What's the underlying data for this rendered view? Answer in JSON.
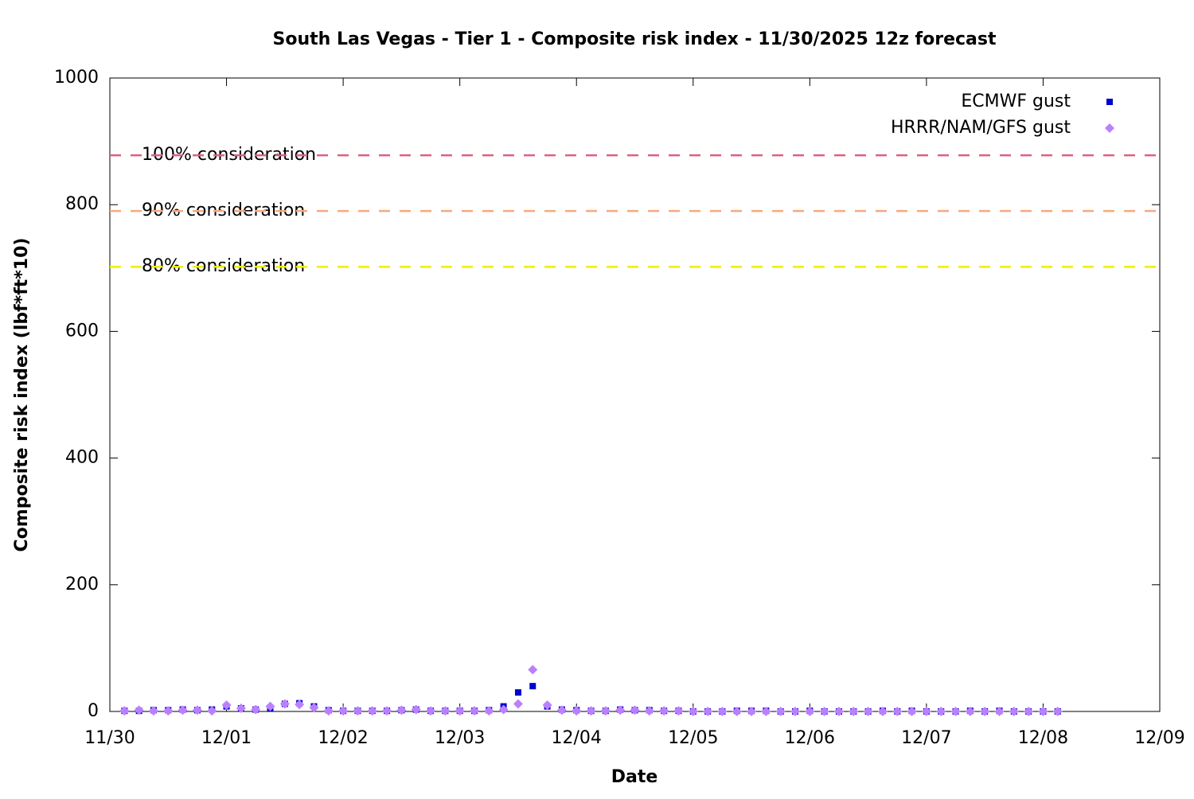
{
  "chart_data": {
    "type": "scatter",
    "title": "South Las Vegas - Tier 1 - Composite risk index - 11/30/2025 12z forecast",
    "x_label": "Date",
    "y_label": "Composite risk index (lbf*ft*10)",
    "x": [
      0.125,
      0.25,
      0.375,
      0.5,
      0.625,
      0.75,
      0.875,
      1.0,
      1.125,
      1.25,
      1.375,
      1.5,
      1.625,
      1.75,
      1.875,
      2.0,
      2.125,
      2.25,
      2.375,
      2.5,
      2.625,
      2.75,
      2.875,
      3.0,
      3.125,
      3.25,
      3.375,
      3.5,
      3.625,
      3.75,
      3.875,
      4.0,
      4.125,
      4.25,
      4.375,
      4.5,
      4.625,
      4.75,
      4.875,
      5.0,
      5.125,
      5.25,
      5.375,
      5.5,
      5.625,
      5.75,
      5.875,
      6.0,
      6.125,
      6.25,
      6.375,
      6.5,
      6.625,
      6.75,
      6.875,
      7.0,
      7.125,
      7.25,
      7.375,
      7.5,
      7.625,
      7.75,
      7.875,
      8.0,
      8.125
    ],
    "series": [
      {
        "name": "ECMWF gust",
        "color": "#0000cc",
        "marker": "square",
        "values": [
          1,
          1,
          2,
          2,
          3,
          2,
          3,
          8,
          5,
          3,
          5,
          12,
          13,
          8,
          2,
          1,
          1,
          1,
          1,
          2,
          3,
          1,
          1,
          1,
          1,
          2,
          8,
          30,
          40,
          8,
          3,
          2,
          1,
          1,
          3,
          2,
          2,
          1,
          1,
          0,
          0,
          0,
          1,
          1,
          1,
          0,
          0,
          1,
          0,
          0,
          0,
          0,
          1,
          0,
          1,
          0,
          0,
          0,
          1,
          0,
          1,
          0,
          0,
          0,
          0
        ]
      },
      {
        "name": "HRRR/NAM/GFS gust",
        "color": "#bb80ff",
        "marker": "diamond",
        "values": [
          1,
          2,
          1,
          1,
          2,
          2,
          1,
          10,
          5,
          3,
          8,
          12,
          11,
          6,
          1,
          1,
          1,
          1,
          1,
          2,
          3,
          1,
          1,
          1,
          1,
          1,
          3,
          12,
          66,
          10,
          2,
          1,
          1,
          1,
          2,
          2,
          1,
          1,
          1,
          0,
          0,
          0,
          0,
          0,
          0,
          0,
          0,
          0,
          0,
          0,
          0,
          0,
          0,
          0,
          0,
          0,
          0,
          0,
          0,
          0,
          0,
          0,
          0,
          0,
          0
        ]
      }
    ],
    "reference_lines": [
      {
        "label": "100% consideration",
        "value": 878,
        "color": "#dd6080"
      },
      {
        "label": "90% consideration",
        "value": 790,
        "color": "#f5aa80"
      },
      {
        "label": "80% consideration",
        "value": 702,
        "color": "#eeee00"
      }
    ],
    "xlim": [
      0,
      9
    ],
    "xticks": [
      {
        "value": 0,
        "label": "11/30"
      },
      {
        "value": 1,
        "label": "12/01"
      },
      {
        "value": 2,
        "label": "12/02"
      },
      {
        "value": 3,
        "label": "12/03"
      },
      {
        "value": 4,
        "label": "12/04"
      },
      {
        "value": 5,
        "label": "12/05"
      },
      {
        "value": 6,
        "label": "12/06"
      },
      {
        "value": 7,
        "label": "12/07"
      },
      {
        "value": 8,
        "label": "12/08"
      },
      {
        "value": 9,
        "label": "12/09"
      }
    ],
    "ylim": [
      0,
      1000
    ],
    "yticks": [
      0,
      200,
      400,
      600,
      800,
      1000
    ],
    "legend": "top-right"
  }
}
